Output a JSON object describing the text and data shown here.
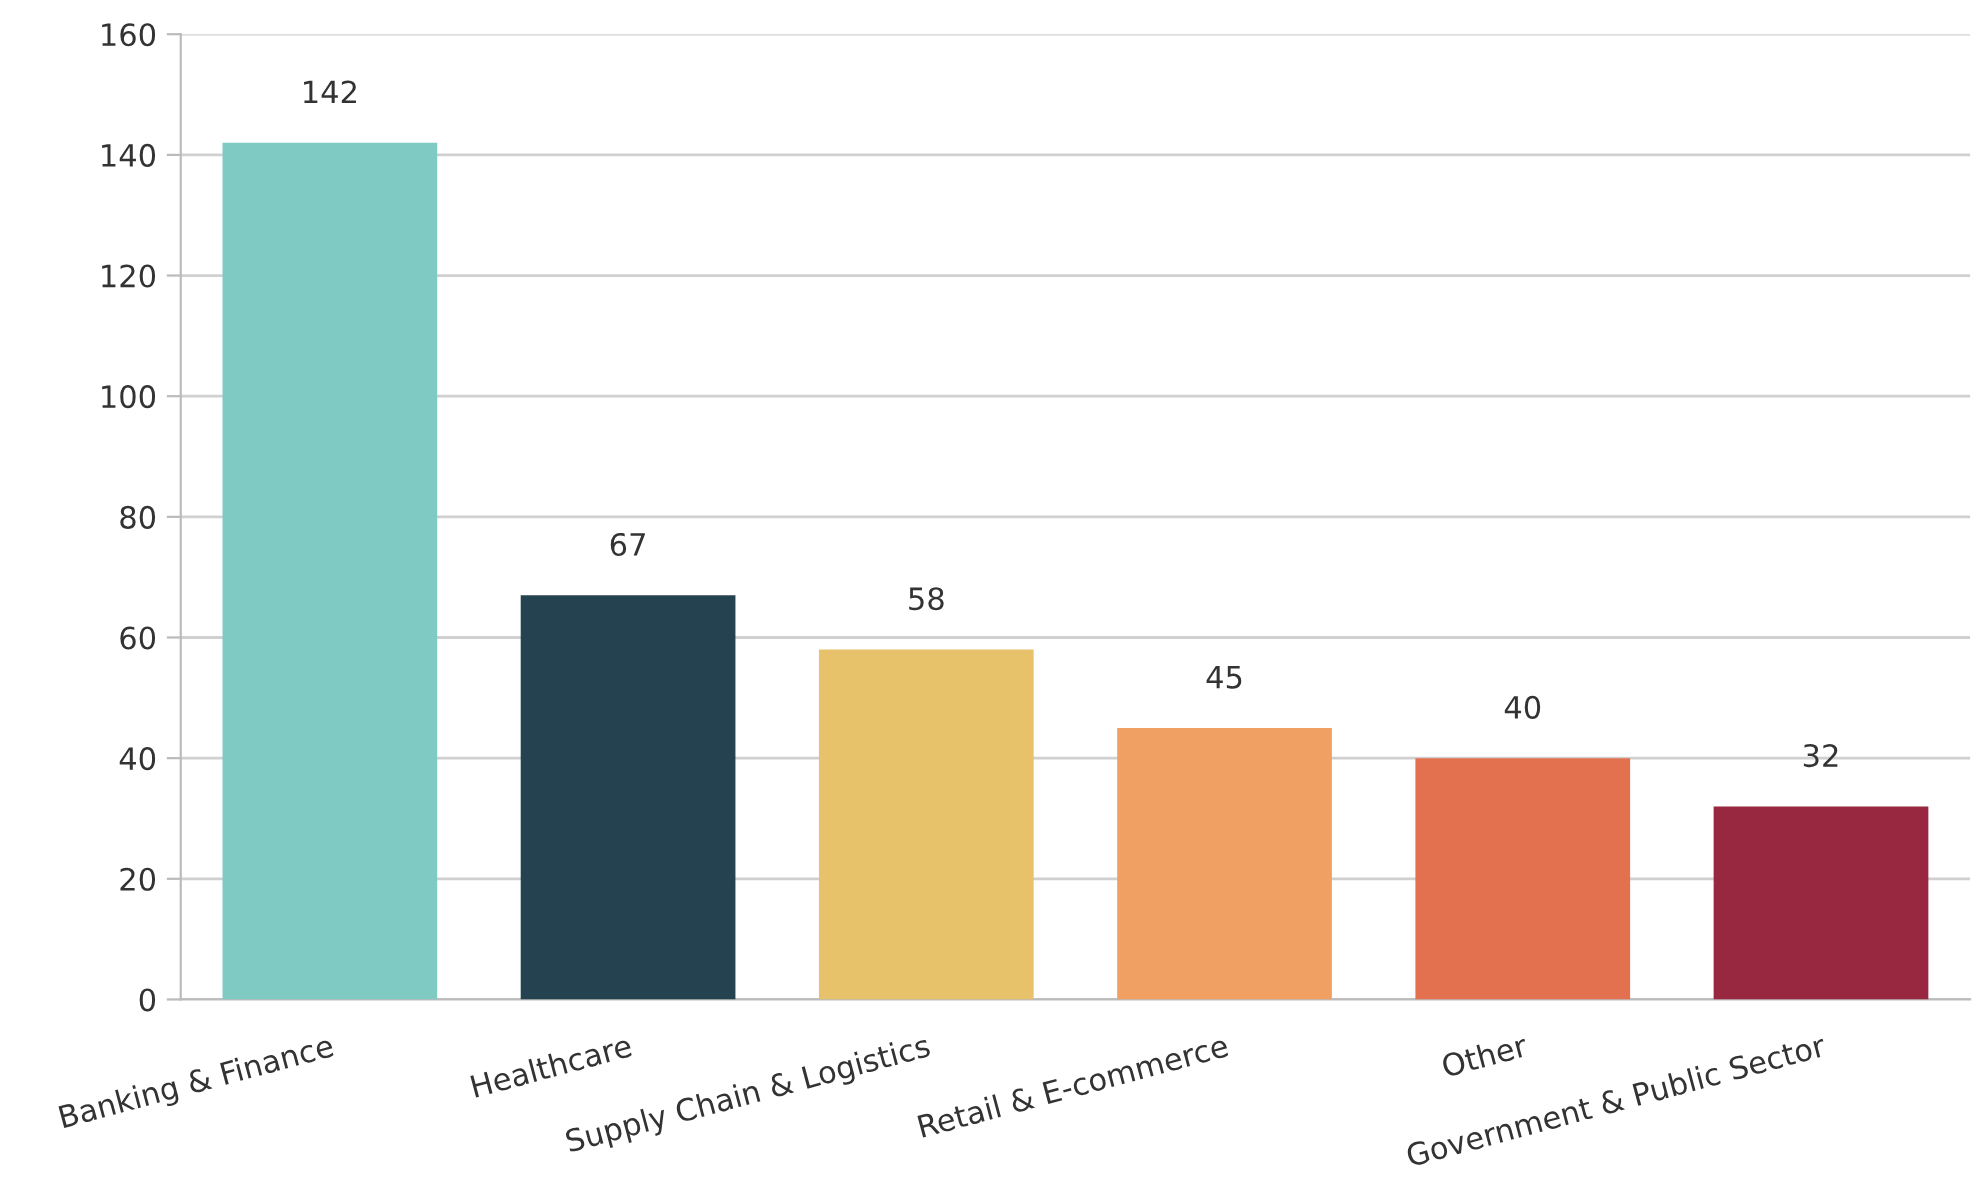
{
  "chart_data": {
    "type": "bar",
    "categories": [
      "Banking & Finance",
      "Healthcare",
      "Supply Chain & Logistics",
      "Retail & E-commerce",
      "Other",
      "Government & Public Sector"
    ],
    "values": [
      142,
      67,
      58,
      45,
      40,
      32
    ],
    "colors": [
      "#7fcbc4",
      "#24424f",
      "#e8c26a",
      "#f0a062",
      "#e3704f",
      "#97283f"
    ],
    "ylim": [
      0,
      160
    ],
    "yticks": [
      0,
      20,
      40,
      60,
      80,
      100,
      120,
      140,
      160
    ],
    "grid": "y",
    "data_labels": true
  }
}
